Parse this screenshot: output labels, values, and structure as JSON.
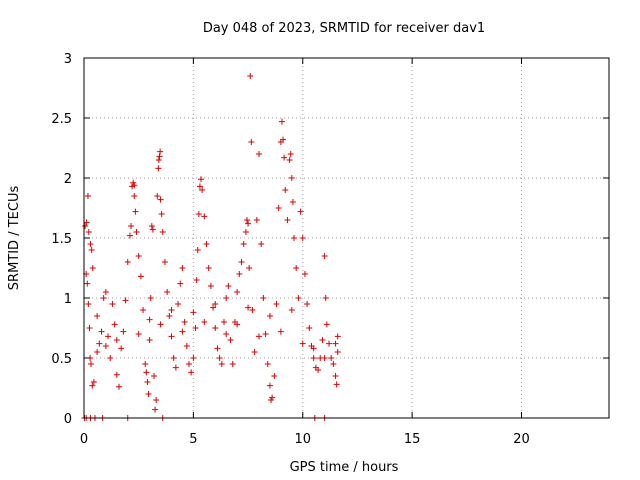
{
  "chart_data": {
    "type": "scatter",
    "title": "Day 048 of 2023, SRMTID for receiver dav1",
    "xlabel": "GPS time / hours",
    "ylabel": "SRMTID / TECUs",
    "xlim": [
      0,
      24
    ],
    "ylim": [
      0,
      3
    ],
    "xticks": [
      0,
      5,
      10,
      15,
      20
    ],
    "yticks": [
      0,
      0.5,
      1,
      1.5,
      2,
      2.5,
      3
    ],
    "ytick_labels": [
      "0",
      "0.5",
      "1",
      "1.5",
      "2",
      "2.5",
      "3"
    ],
    "grid": true,
    "marker": "+",
    "marker_color": "#e00000",
    "series": [
      {
        "name": "SRMTID",
        "description": "Dense cloud of ~1000 '+' markers from 0 to ~11.6 hours; values mostly 0.3-1.3 TECU with peaks up to ~2.85; several points at 0.",
        "points": [
          [
            0.05,
            1.6
          ],
          [
            0.12,
            1.63
          ],
          [
            0.18,
            1.85
          ],
          [
            0.22,
            1.55
          ],
          [
            0.3,
            1.45
          ],
          [
            0.35,
            1.4
          ],
          [
            0.4,
            1.25
          ],
          [
            0.1,
            1.2
          ],
          [
            0.15,
            1.12
          ],
          [
            0.2,
            0.95
          ],
          [
            0.25,
            0.75
          ],
          [
            0.28,
            0.5
          ],
          [
            0.32,
            0.45
          ],
          [
            0.38,
            0.27
          ],
          [
            0.45,
            0.3
          ],
          [
            0.6,
            0.85
          ],
          [
            0.7,
            0.62
          ],
          [
            0.8,
            0.72
          ],
          [
            0.9,
            1.0
          ],
          [
            1.0,
            1.05
          ],
          [
            1.1,
            0.68
          ],
          [
            1.2,
            0.5
          ],
          [
            1.3,
            0.95
          ],
          [
            1.4,
            0.78
          ],
          [
            1.5,
            0.36
          ],
          [
            1.6,
            0.26
          ],
          [
            1.7,
            0.58
          ],
          [
            1.8,
            0.72
          ],
          [
            1.9,
            0.98
          ],
          [
            2.0,
            1.3
          ],
          [
            2.1,
            1.52
          ],
          [
            2.15,
            1.6
          ],
          [
            2.2,
            1.93
          ],
          [
            2.25,
            1.96
          ],
          [
            2.3,
            1.94
          ],
          [
            2.3,
            1.85
          ],
          [
            2.35,
            1.72
          ],
          [
            2.4,
            1.55
          ],
          [
            2.5,
            1.35
          ],
          [
            2.6,
            1.18
          ],
          [
            2.7,
            0.9
          ],
          [
            2.8,
            0.45
          ],
          [
            2.85,
            0.38
          ],
          [
            2.9,
            0.3
          ],
          [
            2.95,
            0.2
          ],
          [
            3.0,
            0.65
          ],
          [
            3.05,
            1.0
          ],
          [
            3.1,
            1.6
          ],
          [
            3.15,
            1.57
          ],
          [
            3.2,
            0.35
          ],
          [
            3.25,
            0.07
          ],
          [
            3.3,
            0.15
          ],
          [
            3.35,
            1.85
          ],
          [
            3.4,
            2.08
          ],
          [
            3.42,
            2.15
          ],
          [
            3.45,
            2.18
          ],
          [
            3.48,
            2.22
          ],
          [
            3.5,
            1.82
          ],
          [
            3.55,
            1.7
          ],
          [
            3.6,
            1.55
          ],
          [
            3.7,
            1.3
          ],
          [
            3.8,
            1.05
          ],
          [
            3.9,
            0.85
          ],
          [
            4.0,
            0.68
          ],
          [
            4.1,
            0.5
          ],
          [
            4.2,
            0.42
          ],
          [
            4.3,
            0.95
          ],
          [
            4.4,
            1.12
          ],
          [
            4.5,
            1.25
          ],
          [
            4.6,
            0.8
          ],
          [
            4.7,
            0.6
          ],
          [
            4.8,
            0.45
          ],
          [
            4.9,
            0.38
          ],
          [
            5.0,
            0.5
          ],
          [
            5.1,
            0.75
          ],
          [
            5.15,
            1.15
          ],
          [
            5.2,
            1.4
          ],
          [
            5.25,
            1.7
          ],
          [
            5.3,
            1.93
          ],
          [
            5.35,
            1.99
          ],
          [
            5.4,
            1.9
          ],
          [
            5.5,
            1.68
          ],
          [
            5.6,
            1.45
          ],
          [
            5.7,
            1.25
          ],
          [
            5.8,
            1.1
          ],
          [
            5.9,
            0.92
          ],
          [
            6.0,
            0.75
          ],
          [
            6.1,
            0.58
          ],
          [
            6.2,
            0.5
          ],
          [
            6.3,
            0.45
          ],
          [
            6.4,
            0.8
          ],
          [
            6.5,
            1.0
          ],
          [
            6.6,
            1.1
          ],
          [
            6.7,
            0.65
          ],
          [
            6.8,
            0.45
          ],
          [
            6.9,
            0.8
          ],
          [
            7.0,
            1.05
          ],
          [
            7.1,
            1.2
          ],
          [
            7.2,
            1.3
          ],
          [
            7.3,
            1.45
          ],
          [
            7.4,
            1.55
          ],
          [
            7.45,
            1.65
          ],
          [
            7.5,
            1.62
          ],
          [
            7.55,
            1.25
          ],
          [
            7.6,
            2.85
          ],
          [
            7.65,
            2.3
          ],
          [
            7.7,
            0.9
          ],
          [
            7.8,
            0.55
          ],
          [
            7.9,
            1.65
          ],
          [
            8.0,
            2.2
          ],
          [
            8.1,
            1.45
          ],
          [
            8.2,
            1.0
          ],
          [
            8.3,
            0.7
          ],
          [
            8.4,
            0.45
          ],
          [
            8.5,
            0.27
          ],
          [
            8.55,
            0.15
          ],
          [
            8.6,
            0.17
          ],
          [
            8.7,
            0.35
          ],
          [
            8.8,
            0.95
          ],
          [
            8.9,
            1.75
          ],
          [
            9.0,
            2.3
          ],
          [
            9.05,
            2.47
          ],
          [
            9.1,
            2.32
          ],
          [
            9.15,
            2.17
          ],
          [
            9.2,
            1.9
          ],
          [
            9.3,
            1.65
          ],
          [
            9.4,
            2.15
          ],
          [
            9.45,
            2.2
          ],
          [
            9.5,
            2.0
          ],
          [
            9.55,
            1.8
          ],
          [
            9.6,
            1.5
          ],
          [
            9.7,
            1.25
          ],
          [
            9.8,
            1.0
          ],
          [
            9.9,
            1.72
          ],
          [
            10.0,
            1.5
          ],
          [
            10.1,
            1.2
          ],
          [
            10.2,
            0.95
          ],
          [
            10.3,
            0.75
          ],
          [
            10.4,
            0.6
          ],
          [
            10.5,
            0.5
          ],
          [
            10.6,
            0.42
          ],
          [
            10.7,
            0.4
          ],
          [
            10.8,
            0.5
          ],
          [
            10.9,
            0.65
          ],
          [
            11.0,
            1.35
          ],
          [
            11.05,
            1.0
          ],
          [
            11.1,
            0.78
          ],
          [
            11.2,
            0.62
          ],
          [
            11.3,
            0.5
          ],
          [
            11.4,
            0.45
          ],
          [
            11.5,
            0.35
          ],
          [
            11.55,
            0.28
          ],
          [
            11.6,
            0.55
          ],
          [
            11.6,
            0.68
          ],
          [
            0.02,
            0.0
          ],
          [
            0.1,
            0.0
          ],
          [
            0.3,
            0.0
          ],
          [
            0.5,
            0.0
          ],
          [
            0.85,
            0.0
          ],
          [
            2.0,
            0.0
          ],
          [
            3.6,
            0.0
          ],
          [
            10.55,
            0.0
          ],
          [
            11.0,
            0.0
          ],
          [
            0.6,
            0.55
          ],
          [
            1.0,
            0.6
          ],
          [
            1.5,
            0.65
          ],
          [
            2.5,
            0.7
          ],
          [
            3.0,
            0.82
          ],
          [
            3.5,
            0.78
          ],
          [
            4.0,
            0.9
          ],
          [
            4.5,
            0.72
          ],
          [
            5.0,
            0.88
          ],
          [
            5.5,
            0.8
          ],
          [
            6.0,
            0.95
          ],
          [
            6.5,
            0.7
          ],
          [
            7.0,
            0.78
          ],
          [
            7.5,
            0.92
          ],
          [
            8.0,
            0.68
          ],
          [
            8.5,
            0.85
          ],
          [
            9.0,
            0.72
          ],
          [
            9.5,
            0.9
          ],
          [
            10.0,
            0.62
          ],
          [
            10.5,
            0.58
          ],
          [
            11.0,
            0.5
          ],
          [
            11.5,
            0.62
          ]
        ]
      }
    ]
  }
}
